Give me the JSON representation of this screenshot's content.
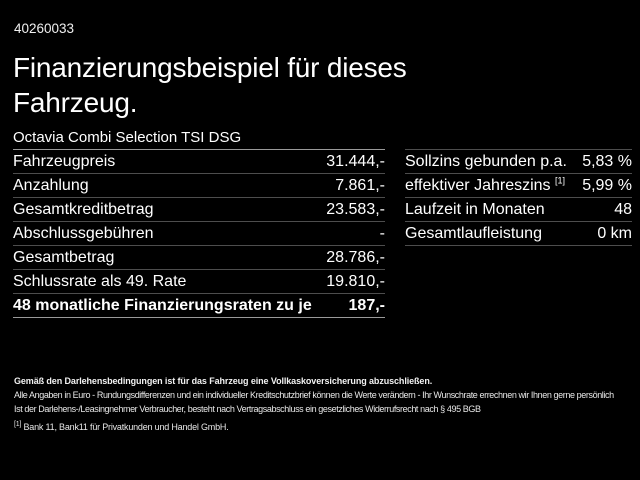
{
  "colors": {
    "background": "#000000",
    "text": "#ffffff",
    "divider": "#4d4d4d",
    "divider_strong": "#9a9a9a"
  },
  "header": {
    "vehicle_id": "40260033",
    "title": "Finanzierungsbeispiel für dieses\nFahrzeug.",
    "subtitle": "Octavia Combi Selection TSI DSG"
  },
  "left_table": {
    "rows": [
      {
        "label": "Fahrzeugpreis",
        "value": "31.444,-"
      },
      {
        "label": "Anzahlung",
        "value": "7.861,-"
      },
      {
        "label": "Gesamtkreditbetrag",
        "value": "23.583,-"
      },
      {
        "label": "Abschlussgebühren",
        "value": "-"
      },
      {
        "label": "Gesamtbetrag",
        "value": "28.786,-"
      },
      {
        "label": "Schlussrate als 49. Rate",
        "value": "19.810,-"
      },
      {
        "label": "48 monatliche Finanzierungsraten zu je",
        "value": "187,-"
      }
    ]
  },
  "right_table": {
    "rows": [
      {
        "label": "Sollzins gebunden p.a.",
        "value": "5,83 %"
      },
      {
        "label": "effektiver Jahreszins",
        "marker": "[1]",
        "value": "5,99 %"
      },
      {
        "label": "Laufzeit in Monaten",
        "value": "48"
      },
      {
        "label": "Gesamtlaufleistung",
        "value": "0 km"
      }
    ]
  },
  "footer": {
    "legal_bold": "Gemäß den Darlehensbedingungen ist für das Fahrzeug eine Vollkaskoversicherung abzuschließen.",
    "legal_line2": "Alle Angaben in Euro - Rundungsdifferenzen und ein individueller Kreditschutzbrief können die Werte verändern - Ihr Wunschrate errechnen wir Ihnen gerne persönlich",
    "legal_line3": "Ist der Darlehens-/Leasingnehmer Verbraucher, besteht nach Vertragsabschluss ein gesetzliches Widerrufsrecht nach § 495 BGB",
    "footnote_marker": "[1]",
    "footnote_text": "Bank 11, Bank11 für Privatkunden und Handel GmbH."
  }
}
